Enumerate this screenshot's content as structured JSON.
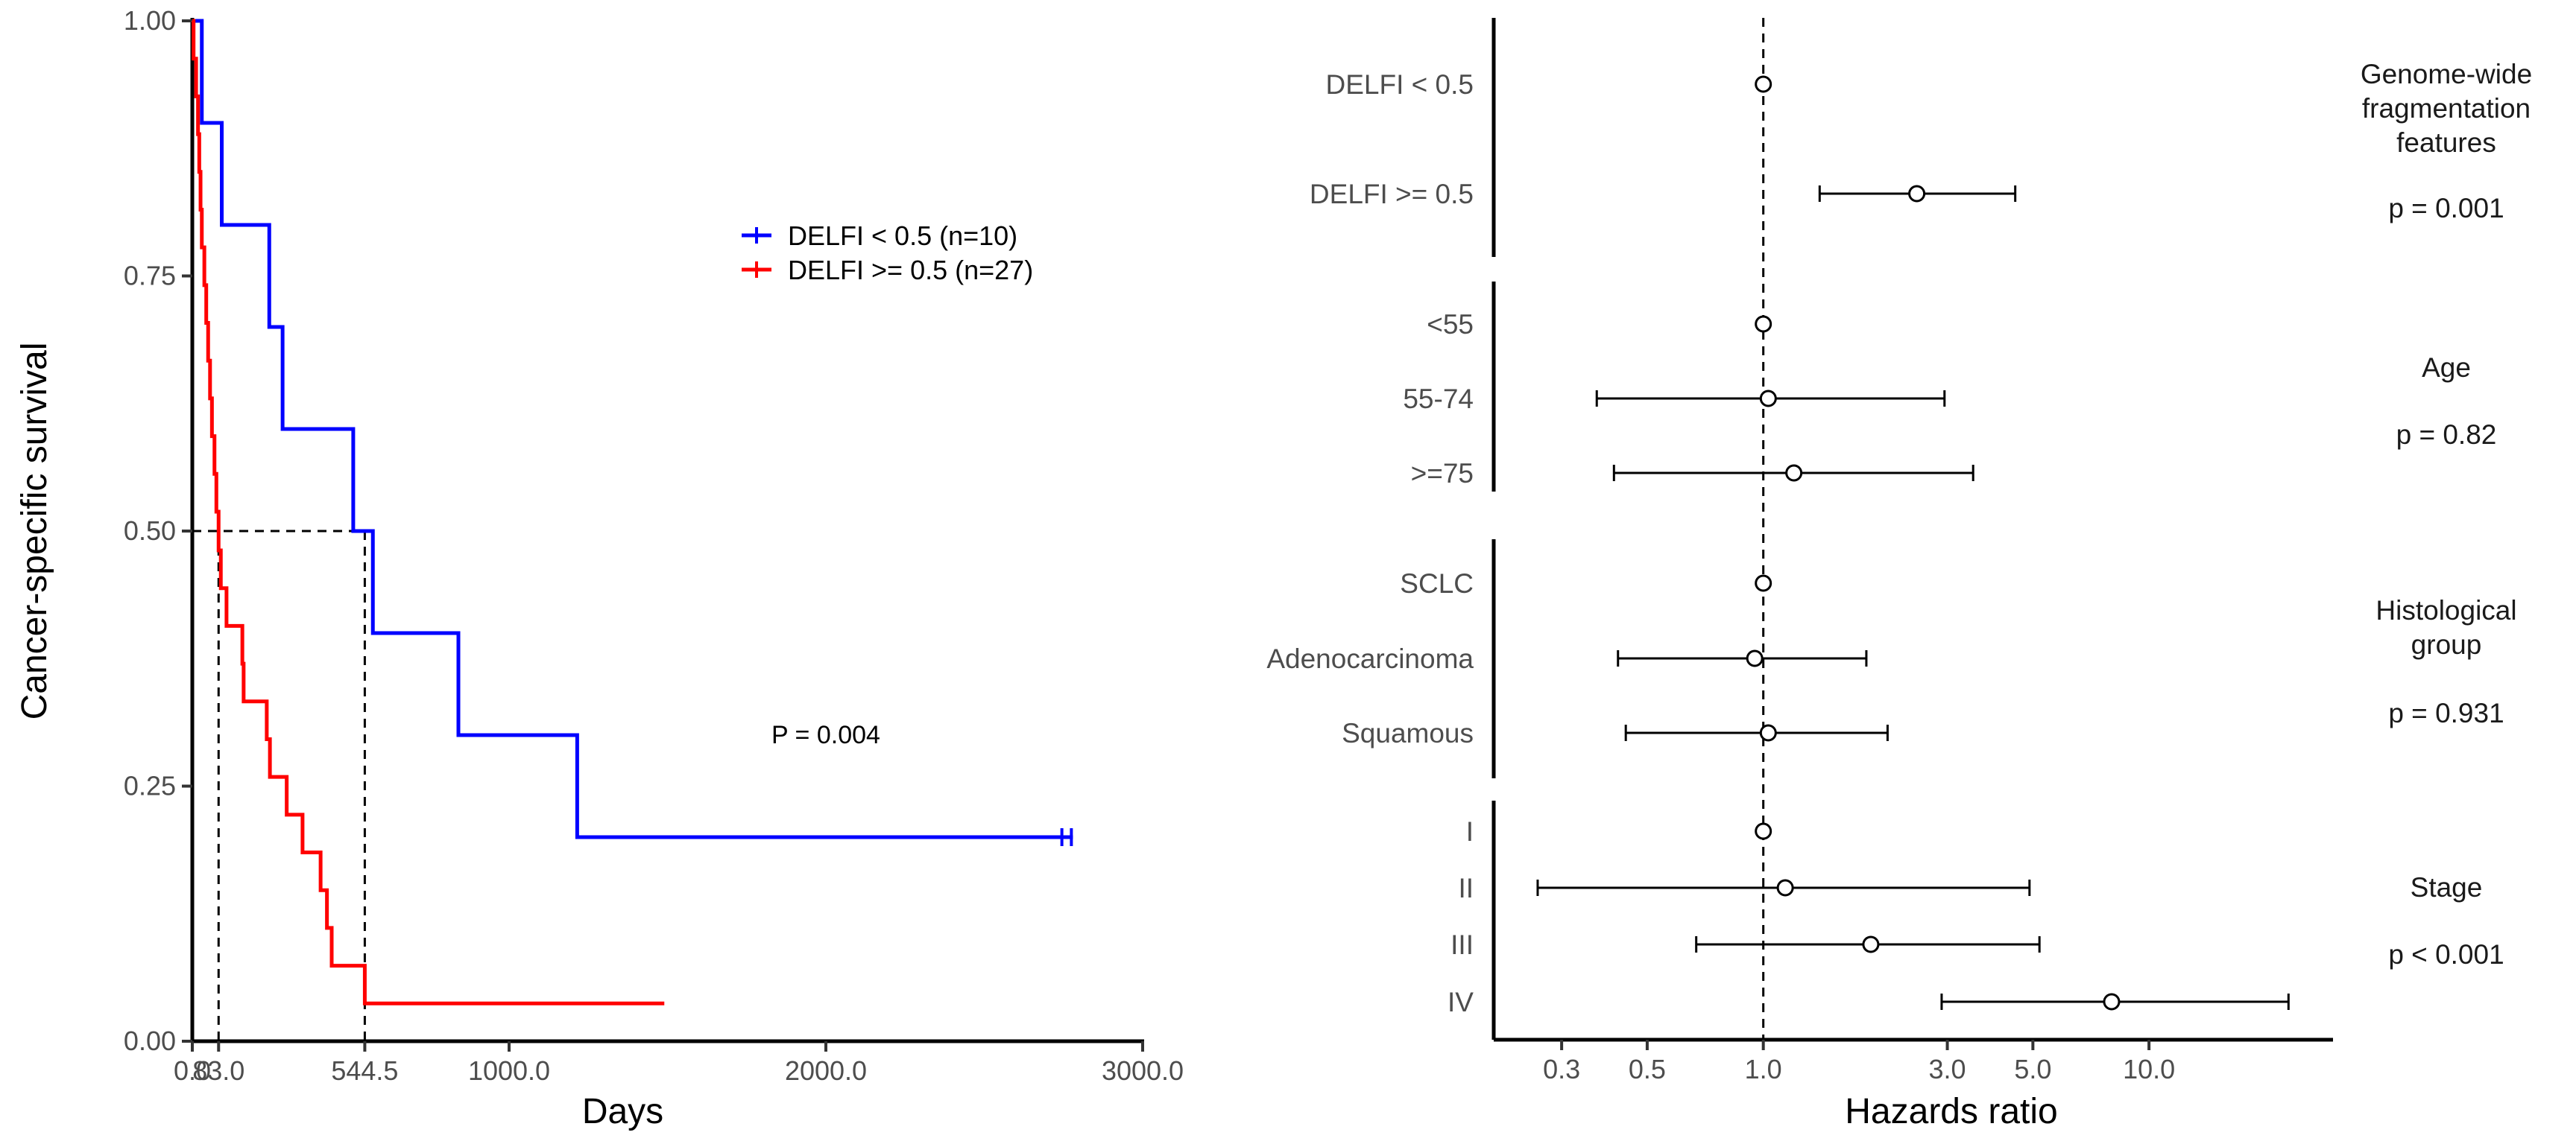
{
  "chart_data": [
    {
      "type": "line",
      "subtype": "kaplan-meier",
      "xlabel": "Days",
      "ylabel": "Cancer-specific survival",
      "xlim": [
        0,
        3000
      ],
      "ylim": [
        0,
        1
      ],
      "x_ticks": [
        0,
        83.0,
        544.5,
        1000.0,
        2000.0,
        3000.0
      ],
      "x_tick_labels": [
        "0.0",
        "83.0",
        "544.5",
        "1000.0",
        "2000.0",
        "3000.0"
      ],
      "y_ticks": [
        0,
        0.25,
        0.5,
        0.75,
        1.0
      ],
      "y_tick_labels": [
        "0.00",
        "0.25",
        "0.50",
        "0.75",
        "1.00"
      ],
      "grid": false,
      "legend_position": "top-right",
      "annotation": "P = 0.004",
      "median_reference_lines": [
        83.0,
        544.5
      ],
      "series": [
        {
          "name": "DELFI < 0.5 (n=10)",
          "color": "#0000ff",
          "steps": [
            [
              0,
              1.0
            ],
            [
              30,
              0.9
            ],
            [
              93,
              0.8
            ],
            [
              243,
              0.7
            ],
            [
              285,
              0.6
            ],
            [
              508,
              0.5
            ],
            [
              570,
              0.4
            ],
            [
              840,
              0.3
            ],
            [
              1215,
              0.2
            ],
            [
              2780,
              0.2
            ]
          ],
          "censored": [
            2745,
            2775
          ]
        },
        {
          "name": "DELFI >= 0.5 (n=27)",
          "color": "#ff0000",
          "steps": [
            [
              0,
              1.0
            ],
            [
              4,
              0.963
            ],
            [
              12,
              0.926
            ],
            [
              18,
              0.889
            ],
            [
              22,
              0.852
            ],
            [
              26,
              0.815
            ],
            [
              30,
              0.778
            ],
            [
              38,
              0.741
            ],
            [
              44,
              0.704
            ],
            [
              50,
              0.667
            ],
            [
              56,
              0.63
            ],
            [
              62,
              0.593
            ],
            [
              70,
              0.556
            ],
            [
              76,
              0.519
            ],
            [
              83,
              0.481
            ],
            [
              90,
              0.444
            ],
            [
              108,
              0.407
            ],
            [
              158,
              0.37
            ],
            [
              162,
              0.333
            ],
            [
              235,
              0.296
            ],
            [
              245,
              0.259
            ],
            [
              298,
              0.222
            ],
            [
              348,
              0.185
            ],
            [
              405,
              0.148
            ],
            [
              425,
              0.111
            ],
            [
              440,
              0.074
            ],
            [
              544.5,
              0.037
            ],
            [
              1490,
              0.037
            ]
          ],
          "censored": []
        }
      ]
    },
    {
      "type": "scatter",
      "subtype": "forest-plot",
      "xlabel": "Hazards ratio",
      "x_scale": "log",
      "xlim": [
        0.2,
        30
      ],
      "x_ticks": [
        0.3,
        0.5,
        1.0,
        3.0,
        5.0,
        10.0
      ],
      "x_tick_labels": [
        "0.3",
        "0.5",
        "1.0",
        "3.0",
        "5.0",
        "10.0"
      ],
      "reference_line": 1.0,
      "groups": [
        {
          "title": [
            "Genome-wide",
            "fragmentation",
            "features"
          ],
          "p_value": "p = 0.001",
          "rows": [
            {
              "label": "DELFI < 0.5",
              "hr": 1.0,
              "lower": null,
              "upper": null
            },
            {
              "label": "DELFI >= 0.5",
              "hr": 2.5,
              "lower": 1.4,
              "upper": 4.5
            }
          ]
        },
        {
          "title": [
            "Age"
          ],
          "p_value": "p = 0.82",
          "rows": [
            {
              "label": "<55",
              "hr": 1.0,
              "lower": null,
              "upper": null
            },
            {
              "label": "55-74",
              "hr": 1.03,
              "lower": 0.37,
              "upper": 2.95
            },
            {
              "label": ">=75",
              "hr": 1.2,
              "lower": 0.41,
              "upper": 3.5
            }
          ]
        },
        {
          "title": [
            "Histological",
            "group"
          ],
          "p_value": "p = 0.931",
          "rows": [
            {
              "label": "SCLC",
              "hr": 1.0,
              "lower": null,
              "upper": null
            },
            {
              "label": "Adenocarcinoma",
              "hr": 0.95,
              "lower": 0.42,
              "upper": 1.85
            },
            {
              "label": "Squamous",
              "hr": 1.03,
              "lower": 0.44,
              "upper": 2.1
            }
          ]
        },
        {
          "title": [
            "Stage"
          ],
          "p_value": "p < 0.001",
          "rows": [
            {
              "label": "I",
              "hr": 1.0,
              "lower": null,
              "upper": null
            },
            {
              "label": "II",
              "hr": 1.14,
              "lower": 0.26,
              "upper": 4.9
            },
            {
              "label": "III",
              "hr": 1.9,
              "lower": 0.67,
              "upper": 5.2
            },
            {
              "label": "IV",
              "hr": 8.0,
              "lower": 2.9,
              "upper": 23.0
            }
          ]
        }
      ]
    }
  ]
}
